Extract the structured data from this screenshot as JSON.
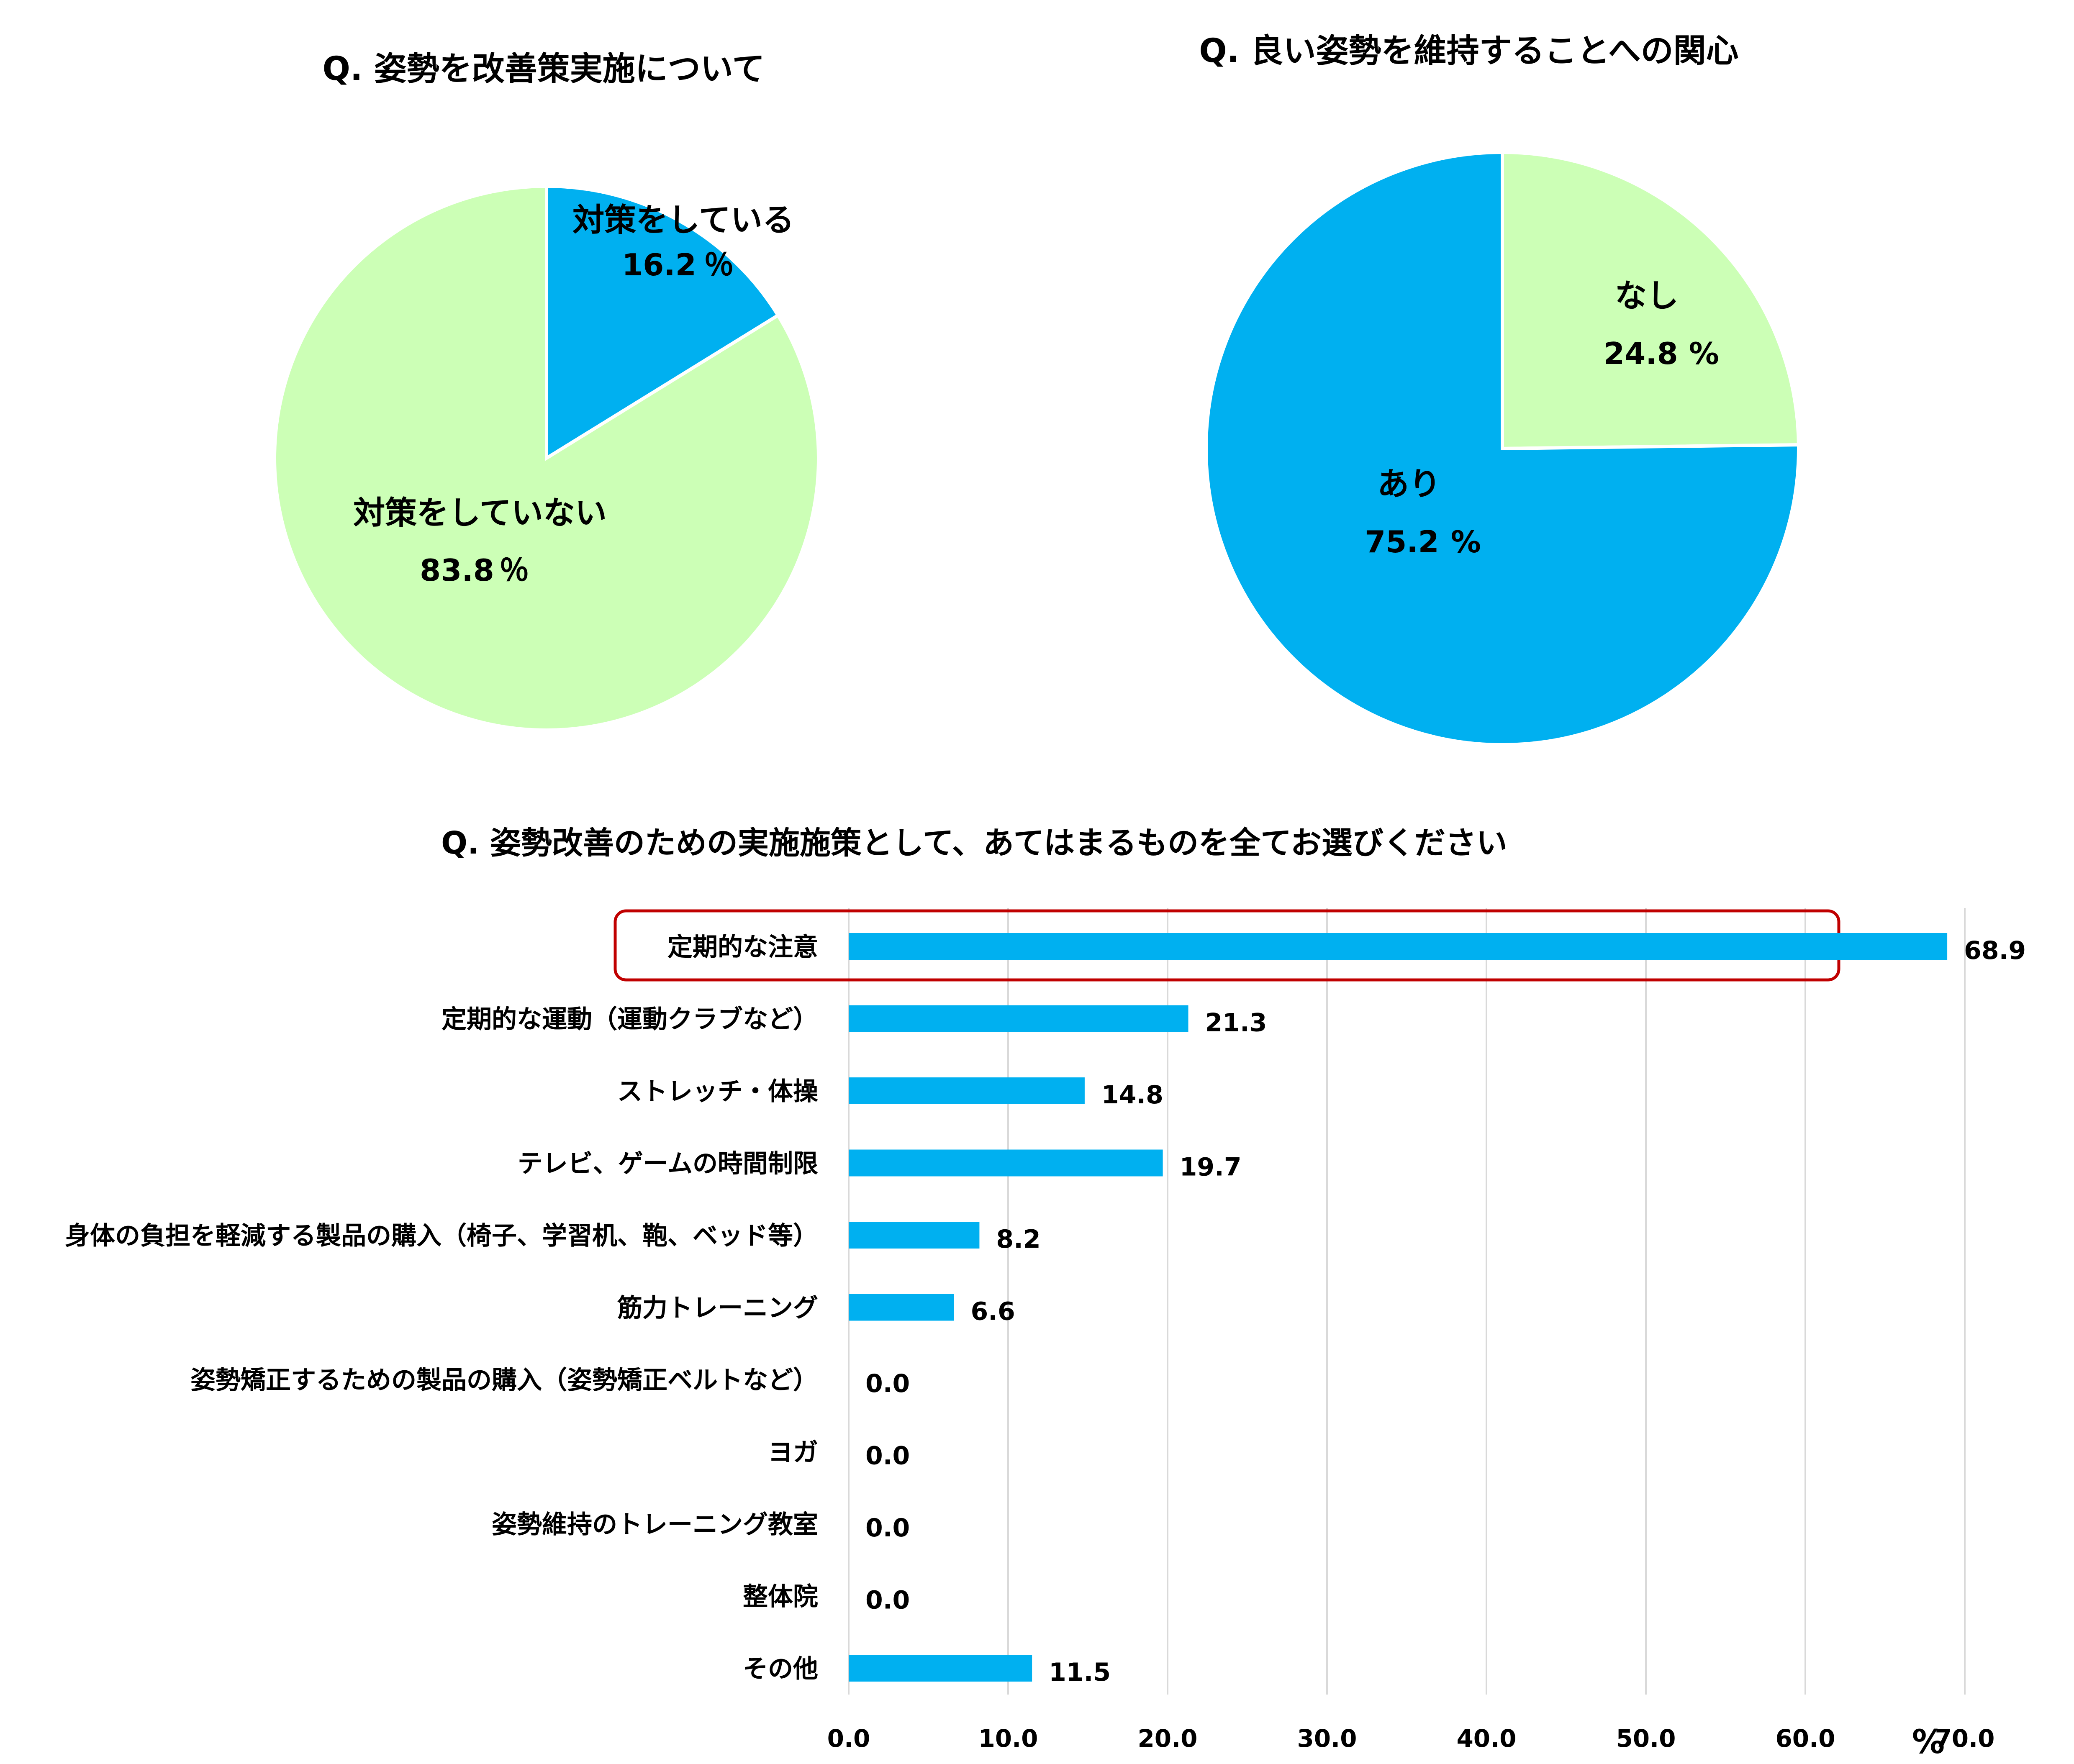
{
  "chart_data": [
    {
      "type": "pie",
      "title": "Q. 姿勢を改善策実施について",
      "unit": "％",
      "slices": [
        {
          "label": "対策をしている",
          "value": 16.2,
          "value_text": "16.2",
          "color": "#00B0F0"
        },
        {
          "label": "対策をしていない",
          "value": 83.8,
          "value_text": "83.8",
          "color": "#CCFFB6"
        }
      ]
    },
    {
      "type": "pie",
      "title": "Q. 良い姿勢を維持することへの関心",
      "unit": "%",
      "slices": [
        {
          "label": "なし",
          "value": 24.8,
          "value_text": "24.8",
          "color": "#CCFFB6"
        },
        {
          "label": "あり",
          "value": 75.2,
          "value_text": "75.2",
          "color": "#00B0F0"
        }
      ]
    },
    {
      "type": "bar",
      "orientation": "horizontal",
      "title": "Q. 姿勢改善のための実施施策として、あてはまるものを全てお選びください",
      "categories": [
        "定期的な注意",
        "定期的な運動（運動クラブなど）",
        "ストレッチ・体操",
        "テレビ、ゲームの時間制限",
        "身体の負担を軽減する製品の購入（椅子、学習机、鞄、ベッド等）",
        "筋力トレーニング",
        "姿勢矯正するための製品の購入（姿勢矯正ベルトなど）",
        "ヨガ",
        "姿勢維持のトレーニング教室",
        "整体院",
        "その他"
      ],
      "values": [
        68.9,
        21.3,
        14.8,
        19.7,
        8.2,
        6.6,
        0.0,
        0.0,
        0.0,
        0.0,
        11.5
      ],
      "value_labels": [
        "68.9",
        "21.3",
        "14.8",
        "19.7",
        "8.2",
        "6.6",
        "0.0",
        "0.0",
        "0.0",
        "0.0",
        "11.5"
      ],
      "xlim": [
        0,
        80
      ],
      "xticks": [
        "0.0",
        "10.0",
        "20.0",
        "30.0",
        "40.0",
        "50.0",
        "60.0",
        "70.0",
        "80.0"
      ],
      "xunit": "%",
      "grid": true,
      "highlighted_category": "定期的な注意",
      "bar_color": "#00B0F0",
      "highlight_color": "#C00000"
    }
  ]
}
